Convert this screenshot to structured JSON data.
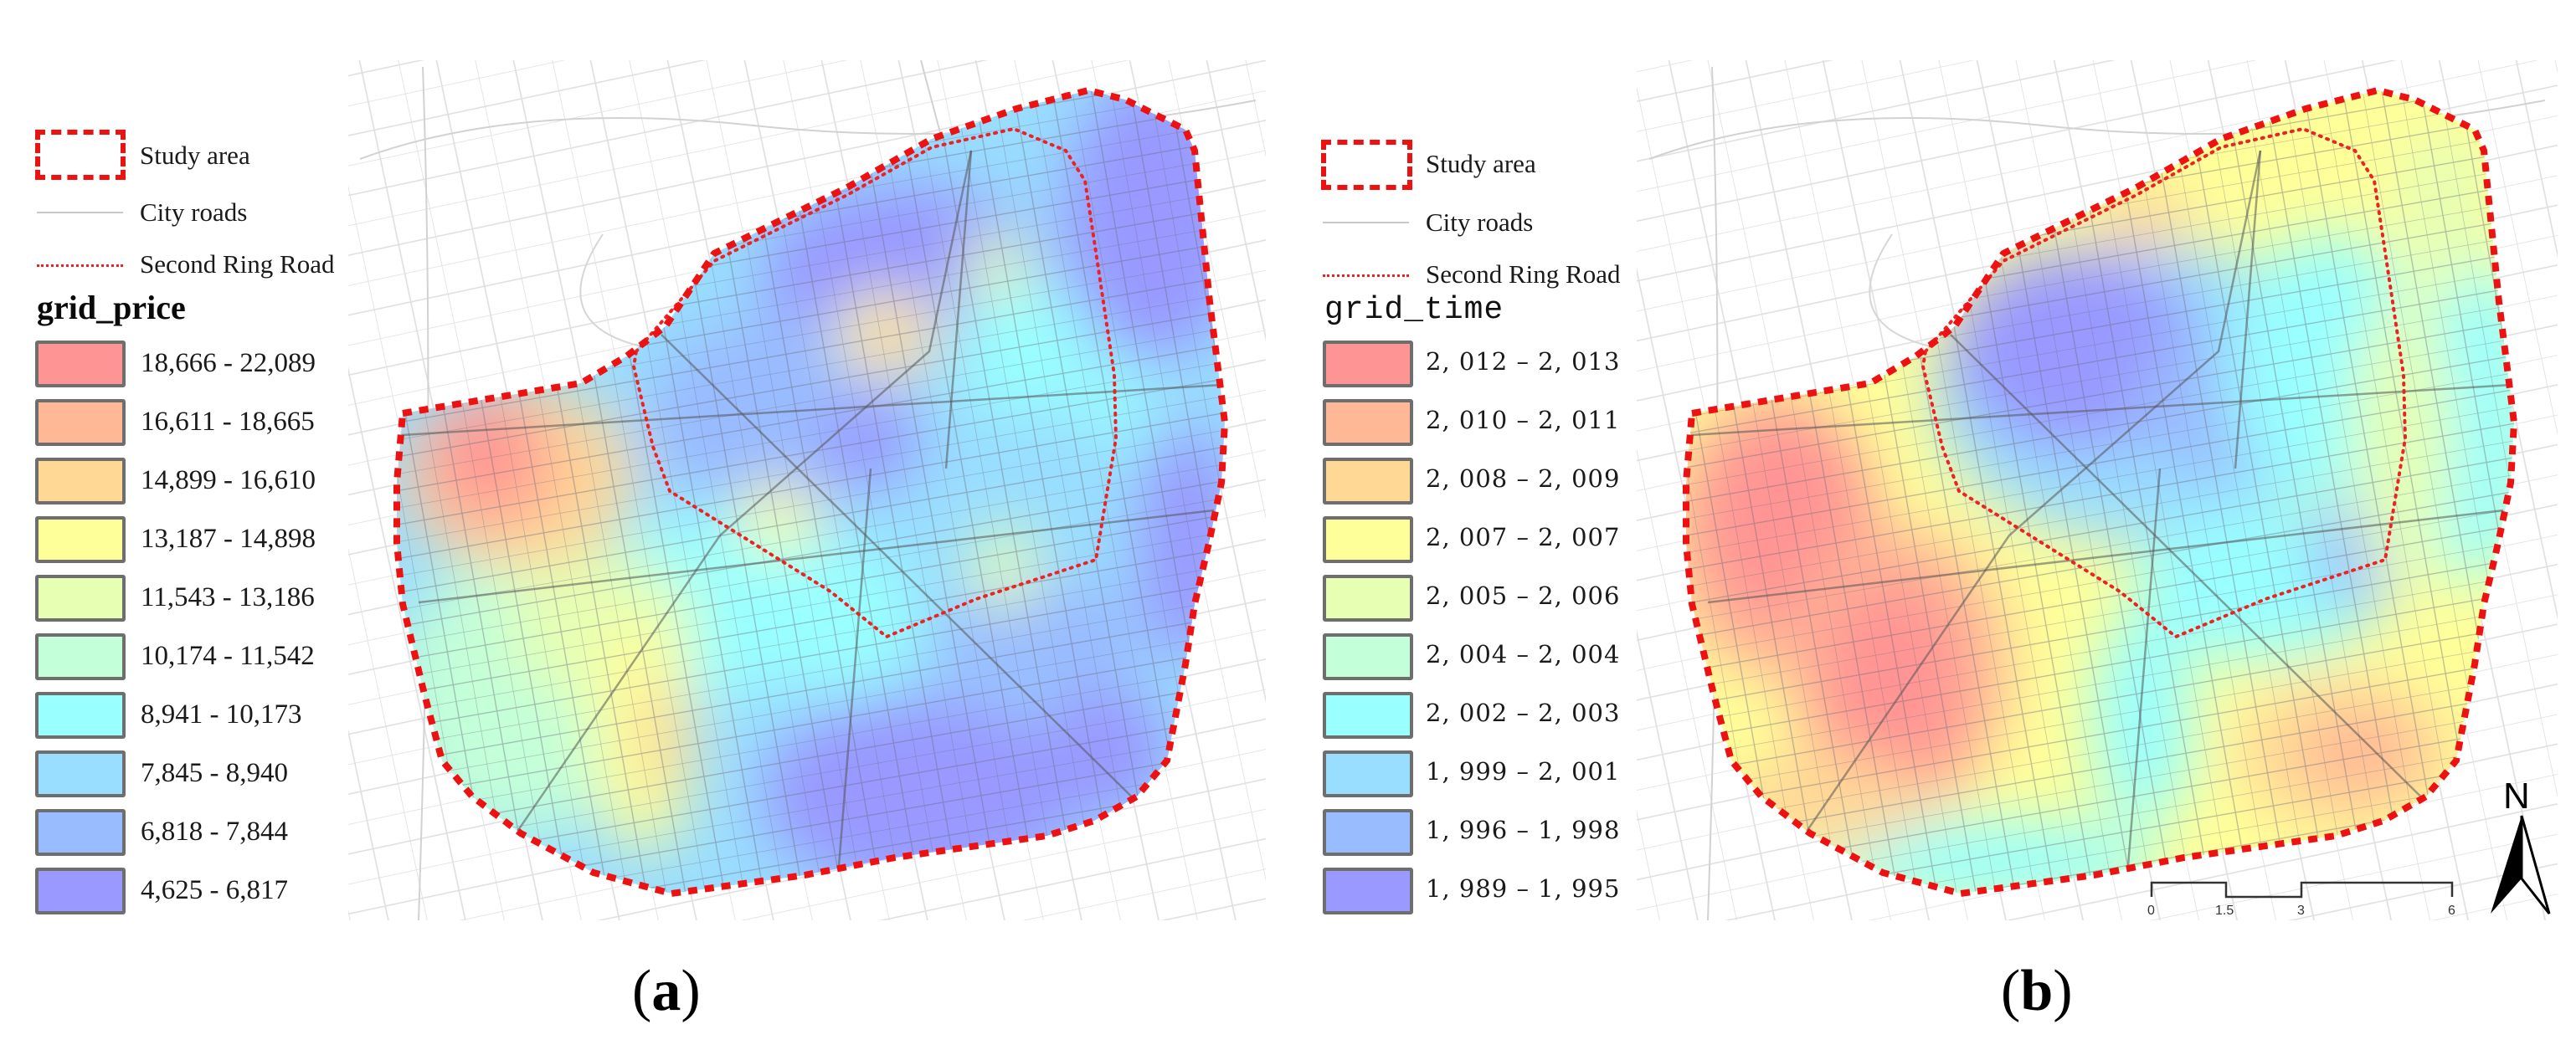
{
  "figure": {
    "panel_a": {
      "caption_letter": "a",
      "legend": {
        "study_area": "Study area",
        "city_roads": "City roads",
        "second_ring_road": "Second Ring Road",
        "title": "grid_price",
        "classes": [
          {
            "label": "18,666 - 22,089",
            "color": "#ff9494"
          },
          {
            "label": "16,611 - 18,665",
            "color": "#ffb896"
          },
          {
            "label": "14,899 - 16,610",
            "color": "#ffd896"
          },
          {
            "label": "13,187 - 14,898",
            "color": "#ffff99"
          },
          {
            "label": "11,543 - 13,186",
            "color": "#e6ffb3"
          },
          {
            "label": "10,174 - 11,542",
            "color": "#c3ffd8"
          },
          {
            "label": "8,941 - 10,173",
            "color": "#99ffff"
          },
          {
            "label": "7,845 - 8,940",
            "color": "#99ddff"
          },
          {
            "label": "6,818 - 7,844",
            "color": "#99bbff"
          },
          {
            "label": "4,625 - 6,817",
            "color": "#9999ff"
          }
        ]
      }
    },
    "panel_b": {
      "caption_letter": "b",
      "legend": {
        "study_area": "Study area",
        "city_roads": "City roads",
        "second_ring_road": "Second Ring Road",
        "title": "grid_time",
        "classes": [
          {
            "label": "2, 012  –  2, 013",
            "color": "#ff9494"
          },
          {
            "label": "2, 010  –  2, 011",
            "color": "#ffb896"
          },
          {
            "label": "2, 008  –  2, 009",
            "color": "#ffd896"
          },
          {
            "label": "2, 007  –  2, 007",
            "color": "#ffff99"
          },
          {
            "label": "2, 005  –  2, 006",
            "color": "#e6ffb3"
          },
          {
            "label": "2, 004  –  2, 004",
            "color": "#c3ffd8"
          },
          {
            "label": "2, 002  –  2, 003",
            "color": "#99ffff"
          },
          {
            "label": "1, 999  –  2, 001",
            "color": "#99ddff"
          },
          {
            "label": "1, 996  –  1, 998",
            "color": "#99bbff"
          },
          {
            "label": "1, 989  –  1, 995",
            "color": "#9999ff"
          }
        ]
      },
      "scale_bar": {
        "ticks": [
          "0",
          "1.5",
          "3",
          "6"
        ]
      },
      "north_arrow": {
        "label": "N"
      }
    }
  },
  "chart_data": [
    {
      "type": "heatmap",
      "title": "grid_price",
      "panel": "(a)",
      "legend_position": "left",
      "classes": [
        {
          "min": 18666,
          "max": 22089,
          "color": "#ff9494"
        },
        {
          "min": 16611,
          "max": 18665,
          "color": "#ffb896"
        },
        {
          "min": 14899,
          "max": 16610,
          "color": "#ffd896"
        },
        {
          "min": 13187,
          "max": 14898,
          "color": "#ffff99"
        },
        {
          "min": 11543,
          "max": 13186,
          "color": "#e6ffb3"
        },
        {
          "min": 10174,
          "max": 11542,
          "color": "#c3ffd8"
        },
        {
          "min": 8941,
          "max": 10173,
          "color": "#99ffff"
        },
        {
          "min": 7845,
          "max": 8940,
          "color": "#99ddff"
        },
        {
          "min": 6818,
          "max": 7844,
          "color": "#99bbff"
        },
        {
          "min": 4625,
          "max": 6817,
          "color": "#9999ff"
        }
      ],
      "layers": [
        "Study area",
        "City roads",
        "Second Ring Road"
      ],
      "pattern": "High prices (red/orange) concentrated in west; isolated orange hotspot north-central inside ring; mostly blue/purple in north-east and south-east"
    },
    {
      "type": "heatmap",
      "title": "grid_time",
      "panel": "(b)",
      "legend_position": "left",
      "classes": [
        {
          "min": 2012,
          "max": 2013,
          "color": "#ff9494"
        },
        {
          "min": 2010,
          "max": 2011,
          "color": "#ffb896"
        },
        {
          "min": 2008,
          "max": 2009,
          "color": "#ffd896"
        },
        {
          "min": 2007,
          "max": 2007,
          "color": "#ffff99"
        },
        {
          "min": 2005,
          "max": 2006,
          "color": "#e6ffb3"
        },
        {
          "min": 2004,
          "max": 2004,
          "color": "#c3ffd8"
        },
        {
          "min": 2002,
          "max": 2003,
          "color": "#99ffff"
        },
        {
          "min": 1999,
          "max": 2001,
          "color": "#99ddff"
        },
        {
          "min": 1996,
          "max": 1998,
          "color": "#99bbff"
        },
        {
          "min": 1989,
          "max": 1995,
          "color": "#9999ff"
        }
      ],
      "layers": [
        "Study area",
        "City roads",
        "Second Ring Road"
      ],
      "scale_bar_ticks": [
        0,
        1.5,
        3,
        6
      ],
      "pattern": "Newest buildings (red) in west and south; oldest (purple/blue) in central area inside the second ring road"
    }
  ]
}
